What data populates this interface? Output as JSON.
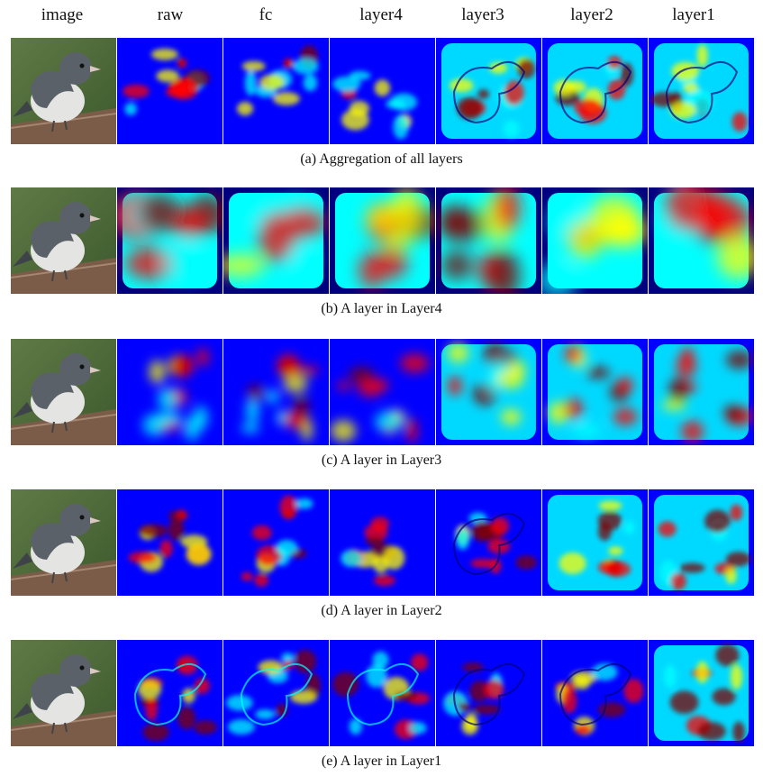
{
  "columns": [
    "image",
    "raw",
    "fc",
    "layer4",
    "layer3",
    "layer2",
    "layer1"
  ],
  "rows": [
    {
      "caption": "(a)  Aggregation of all layers"
    },
    {
      "caption": "(b)  A layer in Layer4"
    },
    {
      "caption": "(c)  A layer in Layer3"
    },
    {
      "caption": "(d)  A layer in Layer2"
    },
    {
      "caption": "(e)  A layer in Layer1"
    }
  ],
  "colors": {
    "colormap": [
      "#00007f",
      "#0000ff",
      "#00ffff",
      "#ffff00",
      "#ff0000",
      "#7f0000"
    ],
    "bird_body": "#5b6168",
    "bird_belly": "#e4e5e3",
    "branch": "#7a5c48",
    "foliage": "#3d5a2e"
  }
}
